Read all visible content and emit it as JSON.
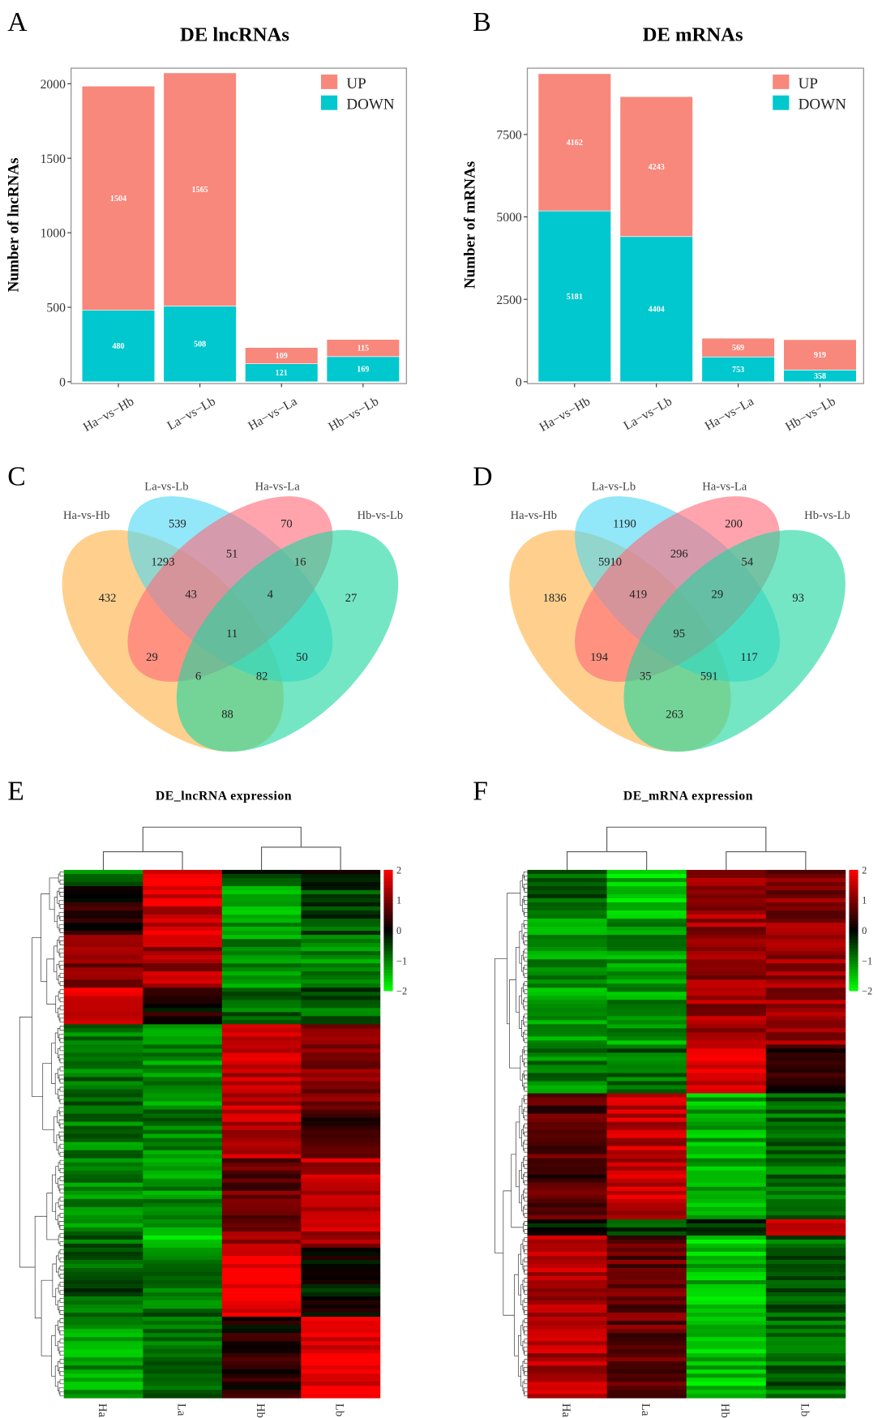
{
  "panels": {
    "a": "A",
    "b": "B",
    "c": "C",
    "d": "D",
    "e": "E",
    "f": "F"
  },
  "colors": {
    "up": "#F8877C",
    "down": "#00C8CE",
    "venn": [
      "#FFB347",
      "#4FD8F5",
      "#FF6B7A",
      "#1FD6A0"
    ],
    "heat_low": "#00FF00",
    "heat_mid": "#000000",
    "heat_high": "#FF0000"
  },
  "chart_data": [
    {
      "type": "bar",
      "stacked": true,
      "title": "DE lncRNAs",
      "xlabel": "",
      "ylabel": "Number of lncRNAs",
      "categories": [
        "Ha−vs−Hb",
        "La−vs−Lb",
        "Ha−vs−La",
        "Hb−vs−Lb"
      ],
      "series": [
        {
          "name": "DOWN",
          "values": [
            480,
            508,
            121,
            169
          ]
        },
        {
          "name": "UP",
          "values": [
            1504,
            1565,
            109,
            115
          ]
        }
      ],
      "yticks": [
        0,
        500,
        1000,
        1500,
        2000
      ],
      "ylim": [
        0,
        2080
      ],
      "legend": [
        "UP",
        "DOWN"
      ],
      "legend_position": "top-right"
    },
    {
      "type": "bar",
      "stacked": true,
      "title": "DE mRNAs",
      "xlabel": "",
      "ylabel": "Number of mRNAs",
      "categories": [
        "Ha−vs−Hb",
        "La−vs−Lb",
        "Ha−vs−La",
        "Hb−vs−Lb"
      ],
      "series": [
        {
          "name": "DOWN",
          "values": [
            5181,
            4404,
            753,
            358
          ]
        },
        {
          "name": "UP",
          "values": [
            4162,
            4243,
            569,
            919
          ]
        }
      ],
      "yticks": [
        0,
        2500,
        5000,
        7500
      ],
      "ylim": [
        0,
        9400
      ],
      "legend": [
        "UP",
        "DOWN"
      ],
      "legend_position": "top-right"
    },
    {
      "type": "venn",
      "sets": [
        "Ha-vs-Hb",
        "La-vs-Lb",
        "Ha-vs-La",
        "Hb-vs-Lb"
      ],
      "regions": [
        {
          "key": "L",
          "value": "539"
        },
        {
          "key": "A",
          "value": "70"
        },
        {
          "key": "HL",
          "value": "1293"
        },
        {
          "key": "LA",
          "value": "51"
        },
        {
          "key": "AB",
          "value": "16"
        },
        {
          "key": "H",
          "value": "432"
        },
        {
          "key": "HLA",
          "value": "43"
        },
        {
          "key": "LAB",
          "value": "4"
        },
        {
          "key": "B",
          "value": "27"
        },
        {
          "key": "HLAB",
          "value": "11"
        },
        {
          "key": "HA",
          "value": "29"
        },
        {
          "key": "LB",
          "value": "50"
        },
        {
          "key": "HAB",
          "value": "6"
        },
        {
          "key": "HLB",
          "value": "82"
        },
        {
          "key": "HB",
          "value": "88"
        }
      ]
    },
    {
      "type": "venn",
      "sets": [
        "Ha-vs-Hb",
        "La-vs-Lb",
        "Ha-vs-La",
        "Hb-vs-Lb"
      ],
      "regions": [
        {
          "key": "L",
          "value": "1190"
        },
        {
          "key": "A",
          "value": "200"
        },
        {
          "key": "HL",
          "value": "5910"
        },
        {
          "key": "LA",
          "value": "296"
        },
        {
          "key": "AB",
          "value": "54"
        },
        {
          "key": "H",
          "value": "1836"
        },
        {
          "key": "HLA",
          "value": "419"
        },
        {
          "key": "LAB",
          "value": "29"
        },
        {
          "key": "B",
          "value": "93"
        },
        {
          "key": "HLAB",
          "value": "95"
        },
        {
          "key": "HA",
          "value": "194"
        },
        {
          "key": "LB",
          "value": "117"
        },
        {
          "key": "HAB",
          "value": "35"
        },
        {
          "key": "HLB",
          "value": "591"
        },
        {
          "key": "HB",
          "value": "263"
        }
      ]
    },
    {
      "type": "heatmap",
      "title": "DE_lncRNA expression",
      "samples": [
        "Ha",
        "La",
        "Hb",
        "Lb"
      ],
      "colorbar_ticks": [
        "2",
        "1",
        "0",
        "−1",
        "−2"
      ],
      "range": [
        -2,
        2
      ],
      "blocks": [
        {
          "rows": 4,
          "values": [
            -0.8,
            2.0,
            -0.5,
            0.0
          ]
        },
        {
          "rows": 12,
          "values": [
            0.3,
            1.6,
            -1.3,
            -0.6
          ]
        },
        {
          "rows": 13,
          "values": [
            1.1,
            1.3,
            -1.2,
            -1.2
          ]
        },
        {
          "rows": 9,
          "values": [
            1.8,
            0.2,
            -0.9,
            -0.7
          ]
        },
        {
          "rows": 20,
          "values": [
            -0.9,
            -1.2,
            1.5,
            0.9
          ]
        },
        {
          "rows": 13,
          "values": [
            -1.0,
            -1.0,
            1.5,
            0.6
          ]
        },
        {
          "rows": 18,
          "values": [
            -1.1,
            -1.1,
            0.8,
            1.4
          ]
        },
        {
          "rows": 4,
          "values": [
            -0.9,
            -1.5,
            1.2,
            1.2
          ]
        },
        {
          "rows": 17,
          "values": [
            -0.7,
            -0.9,
            2.0,
            -0.1
          ]
        },
        {
          "rows": 20,
          "values": [
            -1.2,
            -0.9,
            0.2,
            1.9
          ]
        }
      ]
    },
    {
      "type": "heatmap",
      "title": "DE_mRNA expression",
      "samples": [
        "Ha",
        "La",
        "Hb",
        "Lb"
      ],
      "colorbar_ticks": [
        "2",
        "1",
        "0",
        "−1",
        "−2"
      ],
      "range": [
        -2,
        2
      ],
      "blocks": [
        {
          "rows": 12,
          "values": [
            -0.6,
            -1.5,
            1.3,
            1.0
          ]
        },
        {
          "rows": 31,
          "values": [
            -1.2,
            -1.2,
            1.2,
            1.2
          ]
        },
        {
          "rows": 12,
          "values": [
            -1.0,
            -0.8,
            1.8,
            0.3
          ]
        },
        {
          "rows": 31,
          "values": [
            0.6,
            1.5,
            -1.4,
            -0.8
          ]
        },
        {
          "rows": 4,
          "values": [
            0.0,
            -0.5,
            -0.3,
            1.5
          ]
        },
        {
          "rows": 40,
          "values": [
            1.4,
            0.8,
            -1.5,
            -0.8
          ]
        }
      ]
    }
  ]
}
